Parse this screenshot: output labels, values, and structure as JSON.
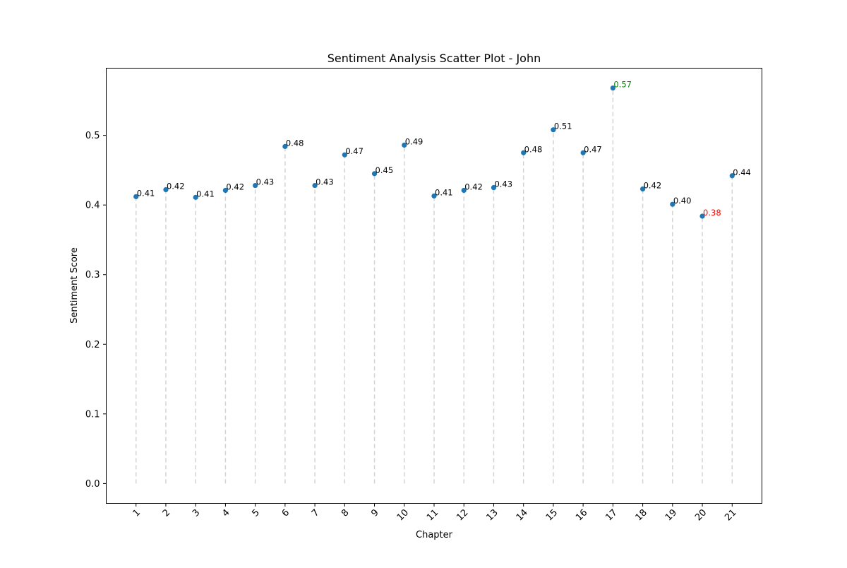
{
  "chart_data": {
    "type": "scatter",
    "title": "Sentiment Analysis Scatter Plot - John",
    "xlabel": "Chapter",
    "ylabel": "Sentiment Score",
    "x": [
      1,
      2,
      3,
      4,
      5,
      6,
      7,
      8,
      9,
      10,
      11,
      12,
      13,
      14,
      15,
      16,
      17,
      18,
      19,
      20,
      21
    ],
    "x_tick_labels": [
      "1",
      "2",
      "3",
      "4",
      "5",
      "6",
      "7",
      "8",
      "9",
      "10",
      "11",
      "12",
      "13",
      "14",
      "15",
      "16",
      "17",
      "18",
      "19",
      "20",
      "21"
    ],
    "y": [
      0.412,
      0.422,
      0.411,
      0.421,
      0.428,
      0.484,
      0.428,
      0.472,
      0.445,
      0.486,
      0.413,
      0.421,
      0.425,
      0.475,
      0.508,
      0.475,
      0.568,
      0.423,
      0.401,
      0.384,
      0.442
    ],
    "data_labels": [
      "0.41",
      "0.42",
      "0.41",
      "0.42",
      "0.43",
      "0.48",
      "0.43",
      "0.47",
      "0.45",
      "0.49",
      "0.41",
      "0.42",
      "0.43",
      "0.48",
      "0.51",
      "0.47",
      "0.57",
      "0.42",
      "0.40",
      "0.38",
      "0.44"
    ],
    "highlight": {
      "max_index": 16,
      "max_color": "#008000",
      "min_index": 19,
      "min_color": "#ff0000"
    },
    "point_color": "#1f77b4",
    "stem_color": "#d3d3d3",
    "stem_style": "dashed",
    "xlim": [
      0,
      22
    ],
    "ylim": [
      -0.0285,
      0.5965
    ],
    "y_ticks": [
      0.0,
      0.1,
      0.2,
      0.3,
      0.4,
      0.5
    ],
    "y_tick_labels": [
      "0.0",
      "0.1",
      "0.2",
      "0.3",
      "0.4",
      "0.5"
    ],
    "x_tick_rotation": 45,
    "grid": false,
    "legend": "none"
  }
}
